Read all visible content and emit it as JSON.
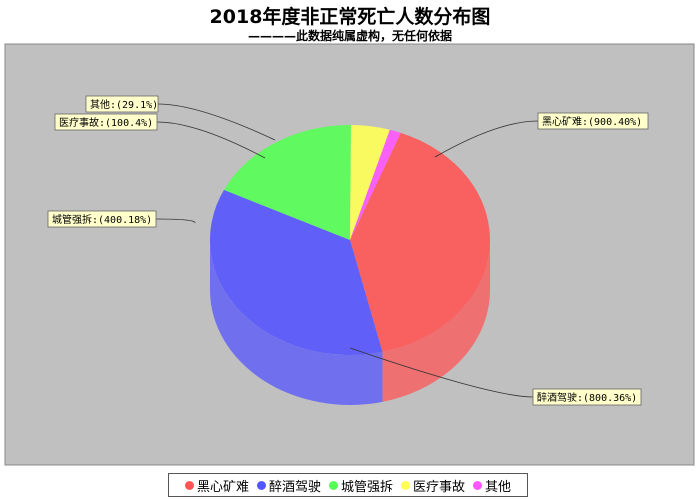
{
  "chart_data": {
    "type": "pie",
    "title": "2018年度非正常死亡人数分布图",
    "subtitle": "————此数据纯属虚构，无任何依据",
    "slices": [
      {
        "name": "黑心矿难",
        "label": "黑心矿难:(900.40%)",
        "value": 900,
        "color": "#ff5555"
      },
      {
        "name": "醉酒驾驶",
        "label": "醉酒驾驶:(800.36%)",
        "value": 800,
        "color": "#5555ff"
      },
      {
        "name": "城管强拆",
        "label": "城管强拆:(400.18%)",
        "value": 400,
        "color": "#55ff55"
      },
      {
        "name": "医疗事故",
        "label": "医疗事故:(100.4%)",
        "value": 100,
        "color": "#ffff55"
      },
      {
        "name": "其他",
        "label": "其他:(29.1%)",
        "value": 29,
        "color": "#ff55ff"
      }
    ],
    "legend_position": "bottom"
  }
}
